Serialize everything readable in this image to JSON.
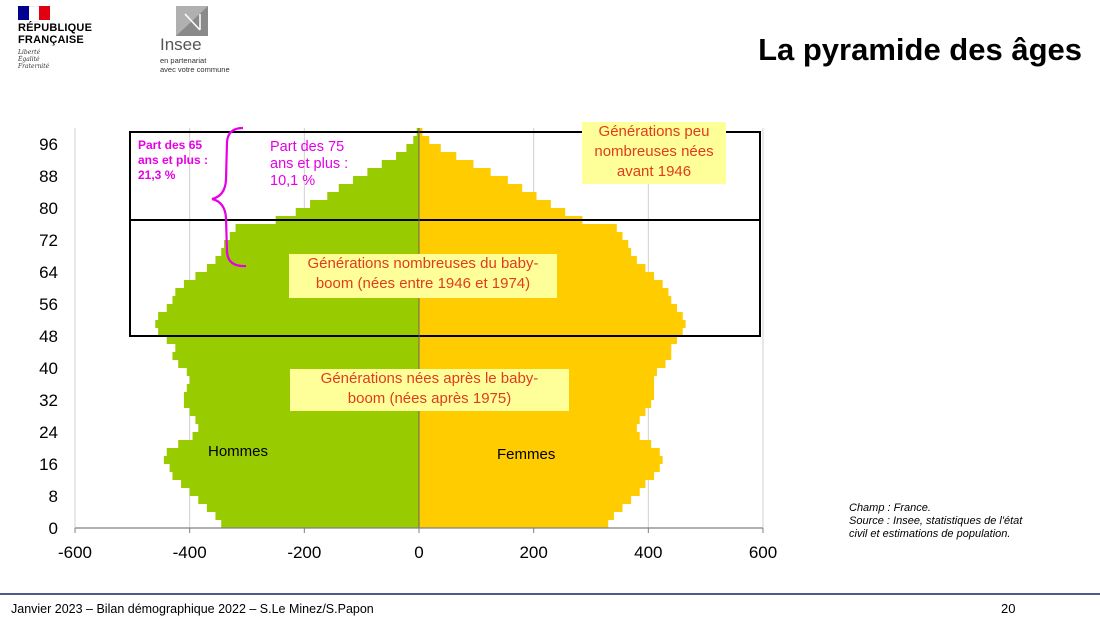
{
  "header": {
    "republique_lines": "RÉPUBLIQUE\nFRANÇAISE",
    "republique_motto": "Liberté\nÉgalité\nFraternité",
    "insee_name": "Insee",
    "insee_sub": "en partenariat\navec votre commune",
    "title": "La pyramide des âges",
    "colors": {
      "flag_blue": "#000091",
      "flag_white": "#ffffff",
      "flag_red": "#e1000f"
    }
  },
  "chart_data": {
    "type": "bar",
    "orientation": "horizontal-population-pyramid",
    "xlim": [
      -600,
      600
    ],
    "ylim": [
      0,
      100
    ],
    "x_ticks": [
      "-600",
      "-400",
      "-200",
      "0",
      "200",
      "400",
      "600"
    ],
    "x_tick_values": [
      -600,
      -400,
      -200,
      0,
      200,
      400,
      600
    ],
    "y_ticks": [
      "0",
      "8",
      "16",
      "24",
      "32",
      "40",
      "48",
      "56",
      "64",
      "72",
      "80",
      "88",
      "96"
    ],
    "y_tick_values": [
      0,
      8,
      16,
      24,
      32,
      40,
      48,
      56,
      64,
      72,
      80,
      88,
      96
    ],
    "grid": "vertical",
    "ages": [
      0,
      2,
      4,
      6,
      8,
      10,
      12,
      14,
      16,
      18,
      20,
      22,
      24,
      26,
      28,
      30,
      32,
      34,
      36,
      38,
      40,
      42,
      44,
      46,
      48,
      50,
      52,
      54,
      56,
      58,
      60,
      62,
      64,
      66,
      68,
      70,
      72,
      74,
      76,
      78,
      80,
      82,
      84,
      86,
      88,
      90,
      92,
      94,
      96,
      98
    ],
    "series": [
      {
        "name": "Hommes",
        "color": "#99cc00",
        "values": [
          -345,
          -355,
          -370,
          -385,
          -400,
          -415,
          -430,
          -435,
          -445,
          -440,
          -420,
          -395,
          -385,
          -390,
          -400,
          -410,
          -410,
          -405,
          -400,
          -405,
          -420,
          -430,
          -425,
          -440,
          -455,
          -460,
          -455,
          -440,
          -430,
          -425,
          -410,
          -390,
          -370,
          -355,
          -345,
          -340,
          -330,
          -320,
          -250,
          -215,
          -190,
          -160,
          -140,
          -115,
          -90,
          -65,
          -40,
          -22,
          -10,
          -4
        ]
      },
      {
        "name": "Femmes",
        "color": "#ffcc00",
        "values": [
          330,
          340,
          355,
          370,
          385,
          395,
          410,
          420,
          425,
          420,
          405,
          385,
          380,
          385,
          395,
          405,
          410,
          410,
          410,
          415,
          430,
          440,
          440,
          450,
          460,
          465,
          460,
          450,
          440,
          435,
          425,
          410,
          395,
          380,
          370,
          365,
          355,
          345,
          285,
          255,
          230,
          205,
          180,
          155,
          125,
          95,
          65,
          38,
          18,
          6
        ]
      }
    ],
    "annotations": [
      {
        "text": "Part des 65\nans et plus :\n21,3 %",
        "color": "#e600e6"
      },
      {
        "text": "Part des 75\nans et plus :\n10,1 %",
        "color": "#e600e6"
      },
      {
        "text": "Générations peu\nnombreuses nées\navant 1946",
        "color": "#e03c1e"
      },
      {
        "text": "Générations nombreuses du baby-\nboom (nées entre 1946 et 1974)",
        "color": "#e03c1e"
      },
      {
        "text": "Générations nées après le baby-\nboom (nées après 1975)",
        "color": "#e03c1e"
      }
    ],
    "series_labels": {
      "left": "Hommes",
      "right": "Femmes"
    },
    "highlight_boxes": [
      {
        "age_from": 77,
        "age_to": 99
      },
      {
        "age_from": 48,
        "age_to": 77
      }
    ]
  },
  "note": "Champ : France.\nSource : Insee, statistiques de l'état\ncivil et estimations de population.",
  "footer": {
    "text": "Janvier 2023 – Bilan démographique 2022 – S.Le Minez/S.Papon",
    "page": "20",
    "rule_color": "#4f5b8c"
  }
}
